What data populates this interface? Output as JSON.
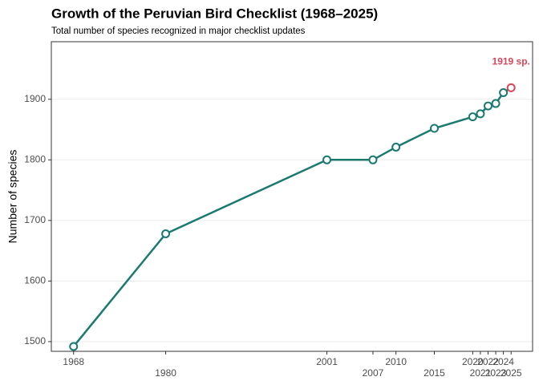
{
  "chart_data": {
    "type": "line",
    "title": "Growth of the Peruvian Bird Checklist (1968–2025)",
    "subtitle": "Total number of species recognized in major checklist updates",
    "y_label": "Number of species",
    "x": [
      1968,
      1980,
      2001,
      2007,
      2010,
      2015,
      2020,
      2021,
      2022,
      2023,
      2024,
      2025
    ],
    "values": [
      1492,
      1678,
      1800,
      1800,
      1821,
      1852,
      1871,
      1876,
      1889,
      1893,
      1911,
      1919
    ],
    "value_labels": [
      null,
      null,
      null,
      null,
      null,
      null,
      null,
      null,
      null,
      null,
      null,
      "1919 sp."
    ],
    "color": "#1b7a70",
    "highlight_color": "#d6475a",
    "xlim": [
      1965.1,
      2027.8
    ],
    "xticks": [
      1968,
      1980,
      2001,
      2007,
      2010,
      2015,
      2020,
      2021,
      2022,
      2023,
      2024,
      2025
    ],
    "ylim": [
      1484,
      1995
    ],
    "yticks": [
      1500,
      1600,
      1700,
      1800,
      1900
    ],
    "grid": true
  }
}
